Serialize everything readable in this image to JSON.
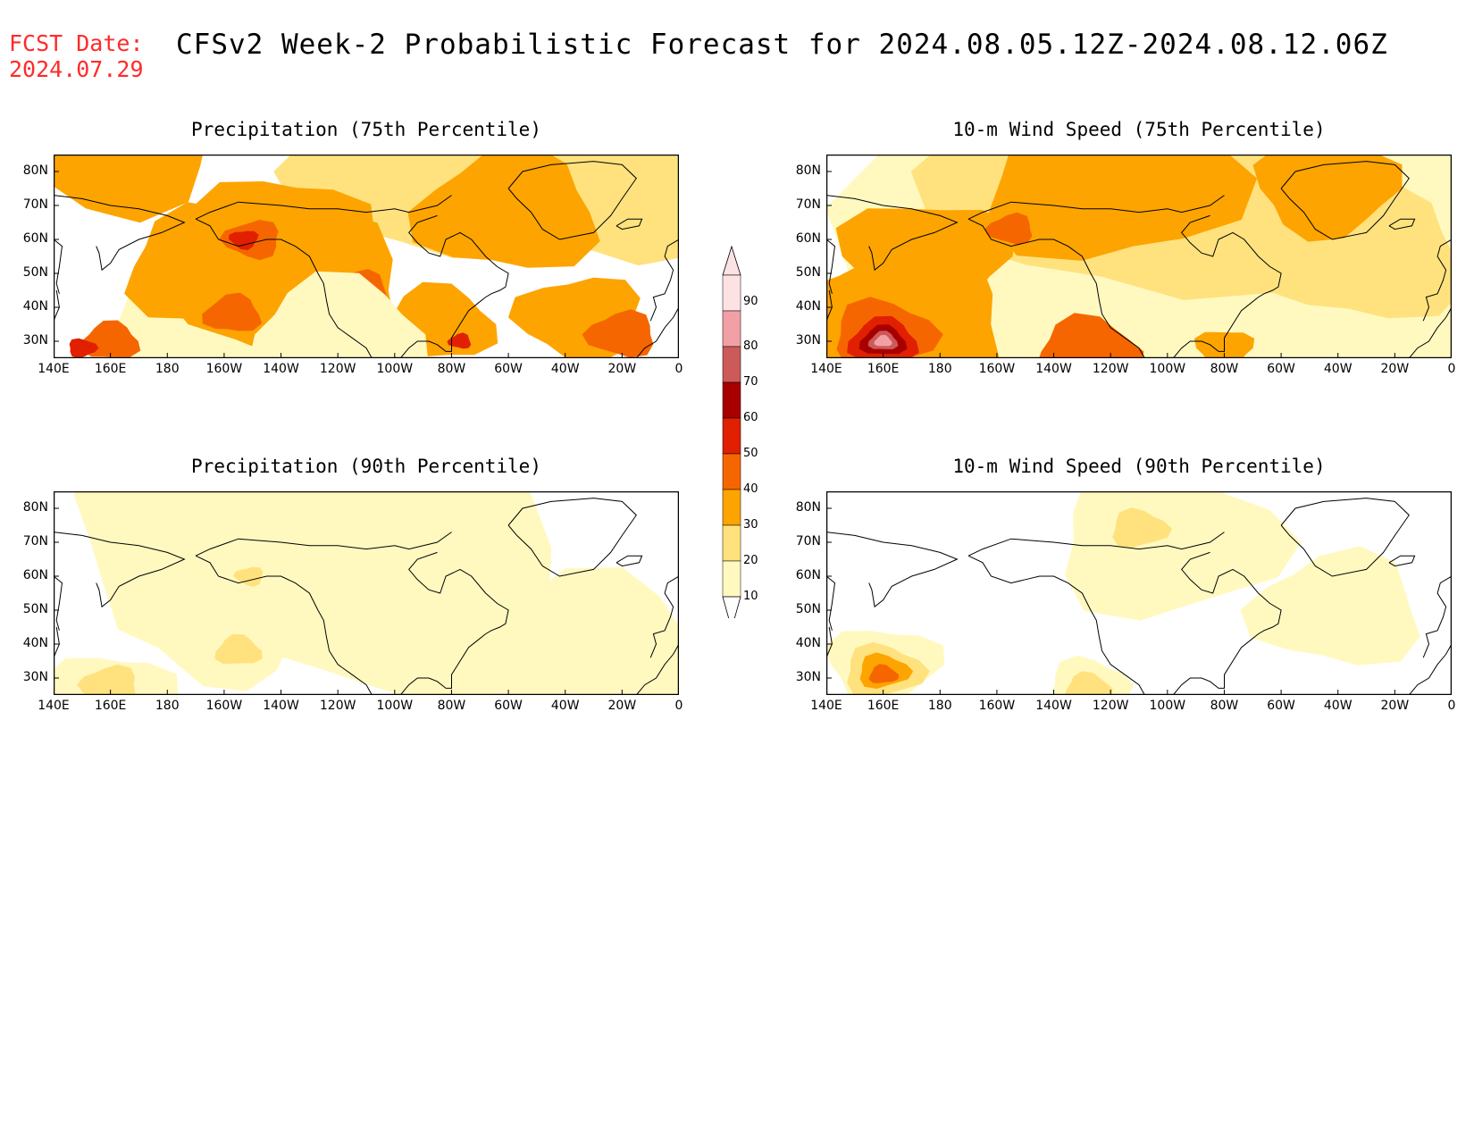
{
  "header": {
    "fcst_label": "FCST Date:",
    "fcst_date": "2024.07.29",
    "title": "CFSv2 Week-2 Probabilistic Forecast for 2024.08.05.12Z-2024.08.12.06Z"
  },
  "axes": {
    "lat_labels": [
      "80N",
      "70N",
      "60N",
      "50N",
      "40N",
      "30N"
    ],
    "lon_labels": [
      "140E",
      "160E",
      "180",
      "160W",
      "140W",
      "120W",
      "100W",
      "80W",
      "60W",
      "40W",
      "20W",
      "0"
    ]
  },
  "colorbar": {
    "levels": [
      10,
      20,
      30,
      40,
      50,
      60,
      70,
      80,
      90
    ],
    "colors": [
      "#fff9c0",
      "#ffe27e",
      "#fda400",
      "#f66600",
      "#e02000",
      "#a80000",
      "#cc5a5a",
      "#f2a0a6",
      "#fde2e4"
    ]
  },
  "panels": [
    {
      "title": "Precipitation (75th Percentile)",
      "variable": "precipitation",
      "percentile": 75
    },
    {
      "title": "10-m Wind Speed (75th Percentile)",
      "variable": "wind",
      "percentile": 75
    },
    {
      "title": "Precipitation (90th Percentile)",
      "variable": "precipitation",
      "percentile": 90
    },
    {
      "title": "10-m Wind Speed (90th Percentile)",
      "variable": "wind",
      "percentile": 90
    }
  ]
}
